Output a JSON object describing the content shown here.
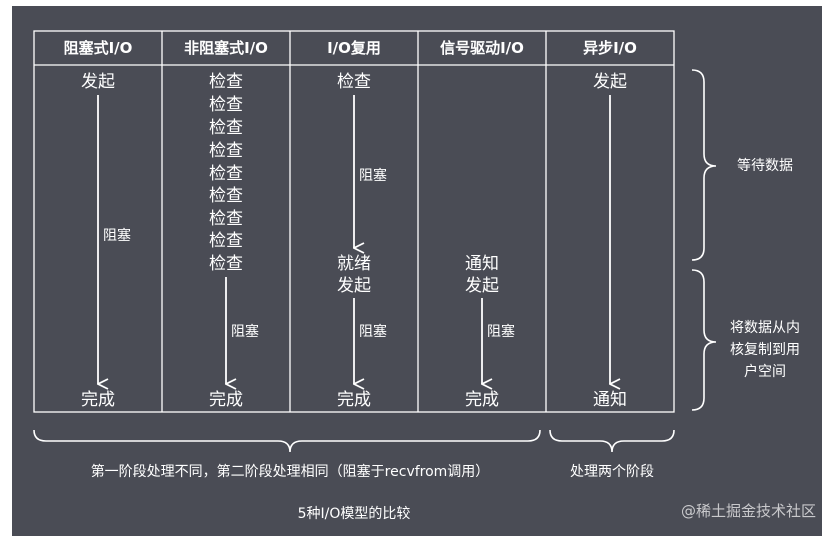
{
  "headers": [
    "阻塞式I/O",
    "非阻塞式I/O",
    "I/O复用",
    "信号驱动I/O",
    "异步I/O"
  ],
  "columns": {
    "blocking": {
      "start": "发起",
      "label": "阻塞",
      "end": "完成"
    },
    "nonblocking": {
      "checks": [
        "检查",
        "检查",
        "检查",
        "检查",
        "检查",
        "检查",
        "检查",
        "检查",
        "检查"
      ],
      "label": "阻塞",
      "end": "完成"
    },
    "multiplexing": {
      "start": "检查",
      "label1": "阻塞",
      "ready": "就绪",
      "start2": "发起",
      "label2": "阻塞",
      "end": "完成"
    },
    "signal": {
      "notify": "通知",
      "start": "发起",
      "label": "阻塞",
      "end": "完成"
    },
    "async": {
      "start": "发起",
      "end": "通知"
    }
  },
  "phases": {
    "wait": "等待数据",
    "copy": [
      "将数据从内",
      "核复制到用",
      "户空间"
    ]
  },
  "footer": {
    "left": "第一阶段处理不同，第二阶段处理相同（阻塞于recvfrom调用）",
    "right": "处理两个阶段",
    "title": "5种I/O模型的比较"
  },
  "watermark": "@稀土掘金技术社区",
  "colors": {
    "background": "#4a4c55",
    "lines": "#ffffff"
  }
}
